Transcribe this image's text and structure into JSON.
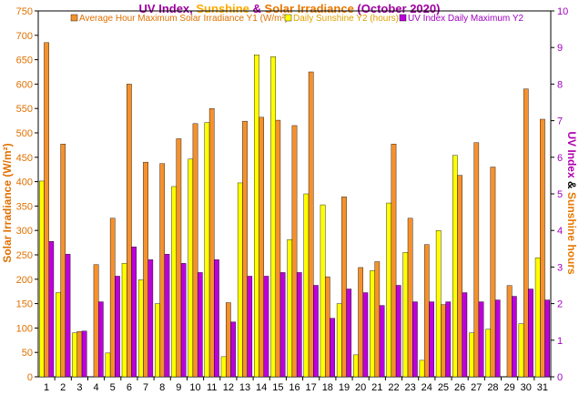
{
  "chart_data": {
    "type": "bar",
    "title_parts": [
      {
        "text": "UV Index",
        "color": "#a000a0"
      },
      {
        "text": ", ",
        "color": "#a000a0"
      },
      {
        "text": "Sunshine",
        "color": "#ffaa00"
      },
      {
        "text": " & ",
        "color": "#a000a0"
      },
      {
        "text": "Solar Irradiance",
        "color": "#e87800"
      },
      {
        "text": " (October 2020)",
        "color": "#a000a0"
      }
    ],
    "ylabel_left": "Solar Irradiance (W/m²)",
    "ylabel_right_parts": [
      {
        "text": "UV Index",
        "color": "#b000b0"
      },
      {
        "text": " & ",
        "color": "#000000"
      },
      {
        "text": "Sunshine hours",
        "color": "#e87800"
      }
    ],
    "y1lim": [
      0,
      750
    ],
    "y1ticks": [
      0,
      50,
      100,
      150,
      200,
      250,
      300,
      350,
      400,
      450,
      500,
      550,
      600,
      650,
      700,
      750
    ],
    "y2lim": [
      0,
      10
    ],
    "y2ticks": [
      0,
      1,
      2,
      3,
      4,
      5,
      6,
      7,
      8,
      9,
      10
    ],
    "categories": [
      "1",
      "2",
      "3",
      "4",
      "5",
      "6",
      "7",
      "8",
      "9",
      "10",
      "11",
      "12",
      "13",
      "14",
      "15",
      "16",
      "17",
      "18",
      "19",
      "20",
      "21",
      "22",
      "23",
      "24",
      "25",
      "26",
      "27",
      "28",
      "29",
      "30",
      "31"
    ],
    "series": [
      {
        "name": "Average Hour Maximum Solar Irradiance Y1 (W/m²)",
        "axis": "y1",
        "color": "#f5912d",
        "values": [
          685,
          477,
          93,
          230,
          325,
          600,
          440,
          437,
          488,
          519,
          550,
          152,
          524,
          532,
          526,
          515,
          625,
          205,
          369,
          224,
          236,
          477,
          325,
          271,
          148,
          413,
          480,
          430,
          187,
          590,
          528
        ]
      },
      {
        "name": "Daily Sunshine Y2 (hours)",
        "axis": "y2",
        "color": "#ffff00",
        "values": [
          5.35,
          2.3,
          1.2,
          0.0,
          0.65,
          3.1,
          2.65,
          2.0,
          5.2,
          5.95,
          6.95,
          0.55,
          5.3,
          8.8,
          8.75,
          3.75,
          5.0,
          4.7,
          2.0,
          0.6,
          2.9,
          4.75,
          3.4,
          0.45,
          4.0,
          6.05,
          1.2,
          1.3,
          0.0,
          1.45,
          3.25
        ]
      },
      {
        "name": "UV Index Daily Maximum Y2",
        "axis": "y2",
        "color": "#bb00dd",
        "values": [
          3.7,
          3.35,
          1.25,
          2.05,
          2.75,
          3.55,
          3.2,
          3.35,
          3.1,
          2.85,
          3.2,
          1.5,
          2.75,
          2.75,
          2.85,
          2.85,
          2.5,
          1.6,
          2.4,
          2.3,
          1.95,
          2.5,
          2.05,
          2.05,
          2.05,
          2.3,
          2.05,
          2.1,
          2.2,
          2.4,
          2.1
        ]
      }
    ]
  }
}
